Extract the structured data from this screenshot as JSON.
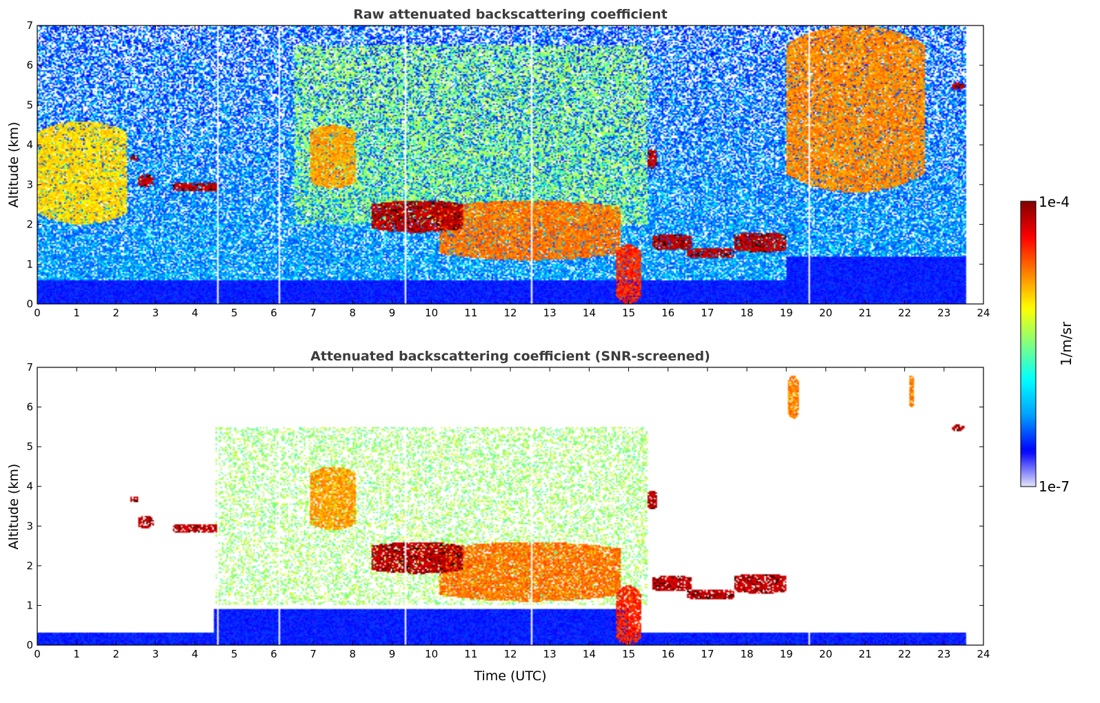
{
  "chart_data": [
    {
      "type": "heatmap",
      "title": "Raw attenuated backscattering coefficient",
      "xlabel": "",
      "ylabel": "Altitude (km)",
      "xlim": [
        0,
        24
      ],
      "ylim": [
        0,
        7
      ],
      "x_ticks": [
        "0",
        "1",
        "2",
        "3",
        "4",
        "5",
        "6",
        "7",
        "8",
        "9",
        "10",
        "11",
        "12",
        "13",
        "14",
        "15",
        "16",
        "17",
        "18",
        "19",
        "20",
        "21",
        "22",
        "23",
        "24"
      ],
      "y_ticks": [
        "0",
        "1",
        "2",
        "3",
        "4",
        "5",
        "6",
        "7"
      ],
      "data_end_time": 23.55,
      "gap_times": [
        4.58,
        6.13,
        9.33,
        12.55,
        19.57
      ],
      "features": [
        {
          "kind": "aerosol_layer",
          "t0": 0.0,
          "t1": 2.3,
          "z0": 2.0,
          "z1": 4.6,
          "level": 0.72
        },
        {
          "kind": "cloud",
          "t0": 2.35,
          "t1": 2.55,
          "z0": 3.6,
          "z1": 3.75,
          "level": 1.0
        },
        {
          "kind": "cloud",
          "t0": 2.55,
          "t1": 2.95,
          "z0": 2.95,
          "z1": 3.25,
          "level": 1.0
        },
        {
          "kind": "cloud",
          "t0": 3.45,
          "t1": 4.6,
          "z0": 2.82,
          "z1": 3.05,
          "level": 1.0
        },
        {
          "kind": "aerosol_layer",
          "t0": 6.9,
          "t1": 8.1,
          "z0": 2.9,
          "z1": 4.5,
          "level": 0.78
        },
        {
          "kind": "cloud",
          "t0": 8.5,
          "t1": 10.8,
          "z0": 1.8,
          "z1": 2.6,
          "level": 1.0
        },
        {
          "kind": "aerosol_layer",
          "t0": 10.2,
          "t1": 14.8,
          "z0": 1.1,
          "z1": 2.6,
          "level": 0.82
        },
        {
          "kind": "rain_shaft",
          "t0": 14.7,
          "t1": 15.3,
          "z0": 0.0,
          "z1": 1.5,
          "level": 0.9
        },
        {
          "kind": "cloud",
          "t0": 15.5,
          "t1": 15.7,
          "z0": 3.4,
          "z1": 3.9,
          "level": 1.0
        },
        {
          "kind": "cloud",
          "t0": 15.6,
          "t1": 16.6,
          "z0": 1.35,
          "z1": 1.75,
          "level": 1.0
        },
        {
          "kind": "cloud",
          "t0": 16.5,
          "t1": 17.7,
          "z0": 1.15,
          "z1": 1.4,
          "level": 1.0
        },
        {
          "kind": "cloud",
          "t0": 17.7,
          "t1": 19.0,
          "z0": 1.3,
          "z1": 1.8,
          "level": 1.0
        },
        {
          "kind": "cirrus",
          "t0": 19.0,
          "t1": 22.5,
          "z0": 2.8,
          "z1": 7.0,
          "level": 0.8
        },
        {
          "kind": "cloud",
          "t0": 23.2,
          "t1": 23.5,
          "z0": 5.4,
          "z1": 5.55,
          "level": 1.0
        }
      ]
    },
    {
      "type": "heatmap",
      "title": "Attenuated backscattering coefficient (SNR-screened)",
      "xlabel": "Time (UTC)",
      "ylabel": "Altitude (km)",
      "xlim": [
        0,
        24
      ],
      "ylim": [
        0,
        7
      ],
      "x_ticks": [
        "0",
        "1",
        "2",
        "3",
        "4",
        "5",
        "6",
        "7",
        "8",
        "9",
        "10",
        "11",
        "12",
        "13",
        "14",
        "15",
        "16",
        "17",
        "18",
        "19",
        "20",
        "21",
        "22",
        "23",
        "24"
      ],
      "y_ticks": [
        "0",
        "1",
        "2",
        "3",
        "4",
        "5",
        "6",
        "7"
      ],
      "data_end_time": 23.55,
      "gap_times": [
        4.58,
        6.13,
        9.33,
        12.55,
        19.57
      ],
      "features": [
        {
          "kind": "cloud",
          "t0": 2.35,
          "t1": 2.55,
          "z0": 3.6,
          "z1": 3.75,
          "level": 1.0
        },
        {
          "kind": "cloud",
          "t0": 2.55,
          "t1": 2.95,
          "z0": 2.95,
          "z1": 3.25,
          "level": 1.0
        },
        {
          "kind": "cloud",
          "t0": 3.45,
          "t1": 4.6,
          "z0": 2.82,
          "z1": 3.05,
          "level": 1.0
        },
        {
          "kind": "aerosol_layer",
          "t0": 6.9,
          "t1": 8.1,
          "z0": 2.9,
          "z1": 4.5,
          "level": 0.78
        },
        {
          "kind": "cloud",
          "t0": 8.5,
          "t1": 10.8,
          "z0": 1.8,
          "z1": 2.6,
          "level": 1.0
        },
        {
          "kind": "aerosol_layer",
          "t0": 10.2,
          "t1": 14.8,
          "z0": 1.1,
          "z1": 2.6,
          "level": 0.82
        },
        {
          "kind": "rain_shaft",
          "t0": 14.7,
          "t1": 15.3,
          "z0": 0.0,
          "z1": 1.5,
          "level": 0.9
        },
        {
          "kind": "cloud",
          "t0": 15.5,
          "t1": 15.7,
          "z0": 3.4,
          "z1": 3.9,
          "level": 1.0
        },
        {
          "kind": "cloud",
          "t0": 15.6,
          "t1": 16.6,
          "z0": 1.35,
          "z1": 1.75,
          "level": 1.0
        },
        {
          "kind": "cloud",
          "t0": 16.5,
          "t1": 17.7,
          "z0": 1.15,
          "z1": 1.4,
          "level": 1.0
        },
        {
          "kind": "cloud",
          "t0": 17.7,
          "t1": 19.0,
          "z0": 1.3,
          "z1": 1.8,
          "level": 1.0
        },
        {
          "kind": "cirrus",
          "t0": 19.05,
          "t1": 19.3,
          "z0": 5.7,
          "z1": 6.8,
          "level": 0.8
        },
        {
          "kind": "cirrus",
          "t0": 22.1,
          "t1": 22.25,
          "z0": 6.0,
          "z1": 6.8,
          "level": 0.8
        },
        {
          "kind": "cloud",
          "t0": 23.2,
          "t1": 23.5,
          "z0": 5.4,
          "z1": 5.55,
          "level": 1.0
        }
      ]
    }
  ],
  "colorbar": {
    "label": "1/m/sr",
    "max_label": "1e-4",
    "min_label": "1e-7",
    "min_value": 1e-07,
    "max_value": 0.0001,
    "scale": "log",
    "colormap": [
      "#e6e6fa",
      "#0000ff",
      "#00a0ff",
      "#00ffff",
      "#80ff80",
      "#ffff00",
      "#ff8000",
      "#ff0000",
      "#800000"
    ]
  }
}
